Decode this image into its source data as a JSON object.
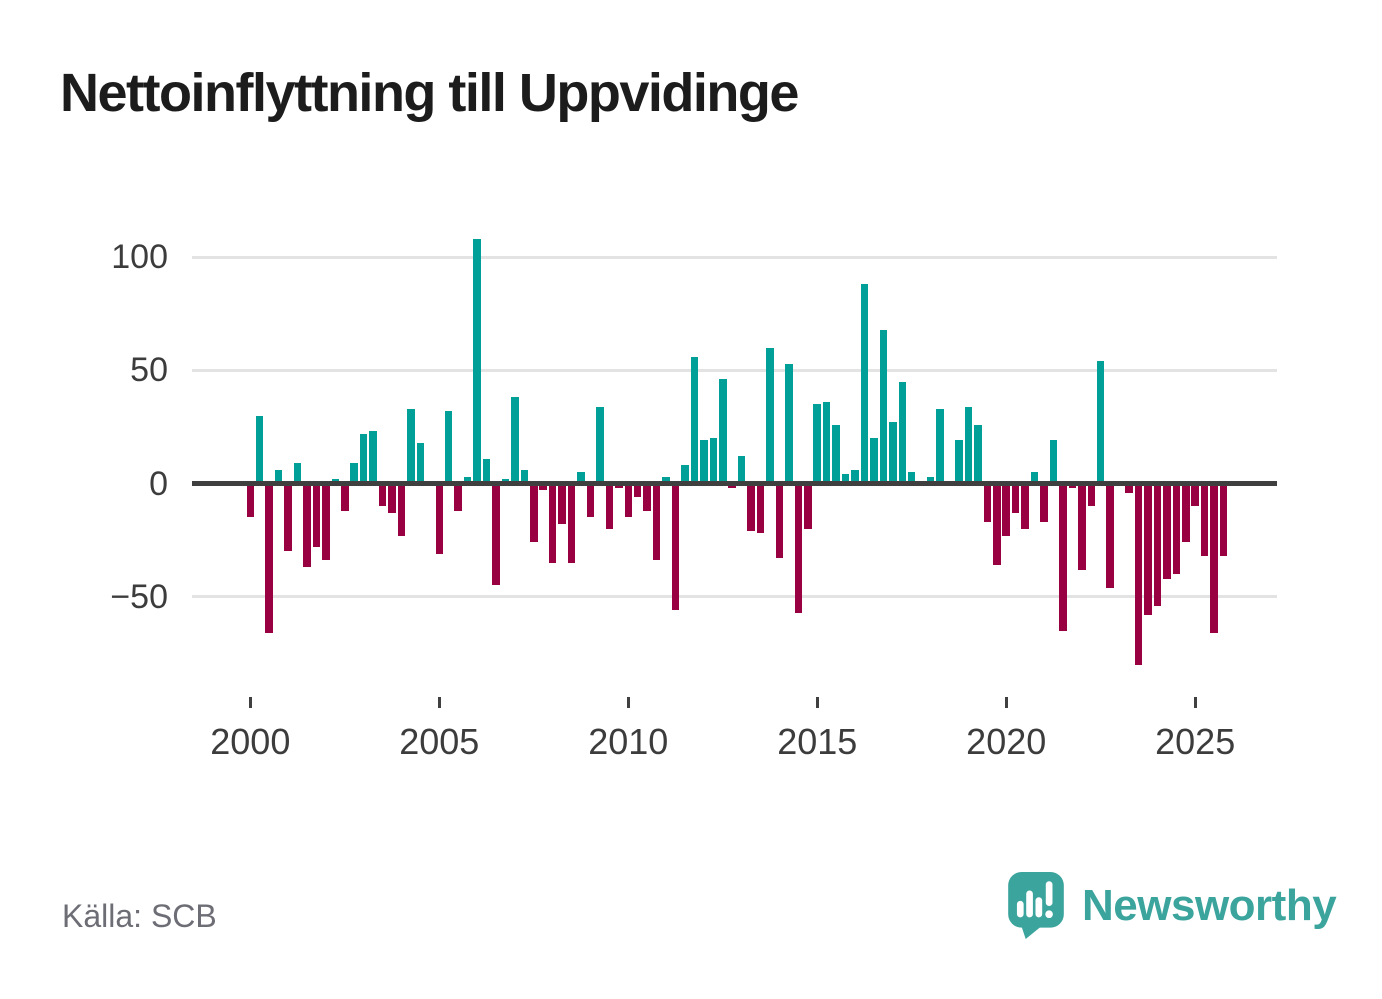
{
  "header": {
    "title": "Nettoinflyttning till Uppvidinge"
  },
  "footer": {
    "source": "Källa: SCB",
    "brand": "Newsworthy",
    "brand_icon": "newsworthy-speech-bubble-bar-chart-icon"
  },
  "colors": {
    "positive_bar": "#00a099",
    "negative_bar": "#990041",
    "grid": "#e3e3e3",
    "zero_line": "#3f3f3f",
    "title_text": "#1c1c1c",
    "axis_text": "#3c3c3c",
    "source_text": "#6d6d76",
    "brand": "#3ba49d"
  },
  "chart_data": {
    "type": "bar",
    "title": "Nettoinflyttning till Uppvidinge",
    "source": "Källa: SCB",
    "frequency": "quarterly",
    "legend": "none",
    "grid": "horizontal",
    "xlabel": "",
    "ylabel": "",
    "ylim": [
      -92,
      112
    ],
    "y_ticks": [
      {
        "value": 100,
        "label": "100"
      },
      {
        "value": 50,
        "label": "50"
      },
      {
        "value": 0,
        "label": "0"
      },
      {
        "value": -50,
        "label": "−50"
      }
    ],
    "x_ticks": [
      {
        "year": 2000,
        "label": "2000"
      },
      {
        "year": 2005,
        "label": "2005"
      },
      {
        "year": 2010,
        "label": "2010"
      },
      {
        "year": 2015,
        "label": "2015"
      },
      {
        "year": 2020,
        "label": "2020"
      },
      {
        "year": 2025,
        "label": "2025"
      }
    ],
    "quarters": [
      "2000Q1",
      "2000Q2",
      "2000Q3",
      "2000Q4",
      "2001Q1",
      "2001Q2",
      "2001Q3",
      "2001Q4",
      "2002Q1",
      "2002Q2",
      "2002Q3",
      "2002Q4",
      "2003Q1",
      "2003Q2",
      "2003Q3",
      "2003Q4",
      "2004Q1",
      "2004Q2",
      "2004Q3",
      "2004Q4",
      "2005Q1",
      "2005Q2",
      "2005Q3",
      "2005Q4",
      "2006Q1",
      "2006Q2",
      "2006Q3",
      "2006Q4",
      "2007Q1",
      "2007Q2",
      "2007Q3",
      "2007Q4",
      "2008Q1",
      "2008Q2",
      "2008Q3",
      "2008Q4",
      "2009Q1",
      "2009Q2",
      "2009Q3",
      "2009Q4",
      "2010Q1",
      "2010Q2",
      "2010Q3",
      "2010Q4",
      "2011Q1",
      "2011Q2",
      "2011Q3",
      "2011Q4",
      "2012Q1",
      "2012Q2",
      "2012Q3",
      "2012Q4",
      "2013Q1",
      "2013Q2",
      "2013Q3",
      "2013Q4",
      "2014Q1",
      "2014Q2",
      "2014Q3",
      "2014Q4",
      "2015Q1",
      "2015Q2",
      "2015Q3",
      "2015Q4",
      "2016Q1",
      "2016Q2",
      "2016Q3",
      "2016Q4",
      "2017Q1",
      "2017Q2",
      "2017Q3",
      "2017Q4",
      "2018Q1",
      "2018Q2",
      "2018Q3",
      "2018Q4",
      "2019Q1",
      "2019Q2",
      "2019Q3",
      "2019Q4",
      "2020Q1",
      "2020Q2",
      "2020Q3",
      "2020Q4",
      "2021Q1",
      "2021Q2",
      "2021Q3",
      "2021Q4",
      "2022Q1",
      "2022Q2",
      "2022Q3",
      "2022Q4",
      "2023Q1",
      "2023Q2",
      "2023Q3",
      "2023Q4",
      "2024Q1",
      "2024Q2",
      "2024Q3",
      "2024Q4",
      "2025Q1",
      "2025Q2",
      "2025Q3",
      "2025Q4"
    ],
    "values": [
      -15,
      30,
      -66,
      6,
      -30,
      9,
      -37,
      -28,
      -34,
      2,
      -12,
      9,
      22,
      23,
      -10,
      -13,
      -23,
      33,
      18,
      0,
      -31,
      32,
      -12,
      3,
      108,
      11,
      -45,
      2,
      38,
      6,
      -26,
      -3,
      -35,
      -18,
      -35,
      5,
      -15,
      34,
      -20,
      -2,
      -15,
      -6,
      -12,
      -34,
      3,
      -56,
      8,
      56,
      19,
      20,
      46,
      -2,
      12,
      -21,
      -22,
      60,
      -33,
      53,
      -57,
      -20,
      35,
      36,
      26,
      4,
      6,
      88,
      20,
      68,
      27,
      45,
      5,
      1,
      3,
      33,
      1,
      19,
      34,
      26,
      -17,
      -36,
      -23,
      -13,
      -20,
      5,
      -17,
      19,
      -65,
      -2,
      -38,
      -10,
      54,
      -46,
      0,
      -4,
      -80,
      -58,
      -54,
      -42,
      -40,
      -26,
      -10,
      -32,
      -66,
      -32
    ]
  }
}
